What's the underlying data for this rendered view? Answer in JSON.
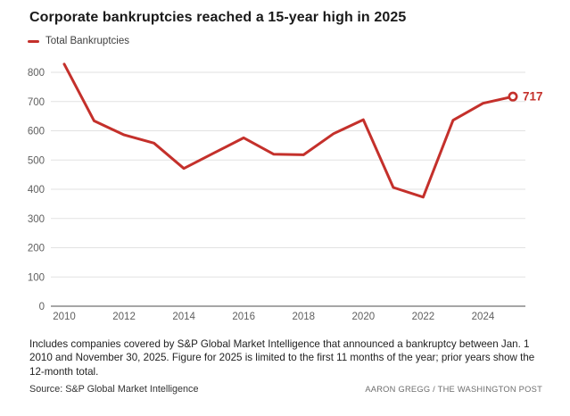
{
  "header": {
    "title": "Corporate bankruptcies reached a 15-year high in 2025"
  },
  "legend": {
    "items": [
      {
        "label": "Total Bankruptcies",
        "color": "#c4302b"
      }
    ]
  },
  "chart_data": {
    "type": "line",
    "title": "Corporate bankruptcies reached a 15-year high in 2025",
    "x": [
      2010,
      2011,
      2012,
      2013,
      2014,
      2015,
      2016,
      2017,
      2018,
      2019,
      2020,
      2021,
      2022,
      2023,
      2024,
      2025
    ],
    "series": [
      {
        "name": "Total Bankruptcies",
        "values": [
          828,
          634,
          586,
          558,
          471,
          524,
          576,
          520,
          518,
          590,
          638,
          406,
          373,
          636,
          694,
          717
        ]
      }
    ],
    "x_tick_labels": [
      "2010",
      "2012",
      "2014",
      "2016",
      "2018",
      "2020",
      "2022",
      "2024"
    ],
    "y_ticks": [
      0,
      100,
      200,
      300,
      400,
      500,
      600,
      700,
      800
    ],
    "ylim": [
      0,
      800
    ],
    "xlabel": "",
    "ylabel": "",
    "grid": "horizontal",
    "legend_position": "top-left",
    "annotation": {
      "text": "717",
      "year": 2025,
      "value": 717
    },
    "line_color": "#c4302b",
    "gridline_color": "#e2e2e2",
    "baseline_color": "#a6a6a6",
    "end_marker": "open-circle"
  },
  "footer": {
    "notes": "Includes companies covered by S&P Global Market Intelligence that announced a bankruptcy between Jan. 1 2010 and November 30, 2025. Figure for 2025 is limited to the first 11 months of the year; prior years show the 12-month total.",
    "source": "Source: S&P Global Market Intelligence",
    "credit": "AARON GREGG / THE WASHINGTON POST"
  }
}
